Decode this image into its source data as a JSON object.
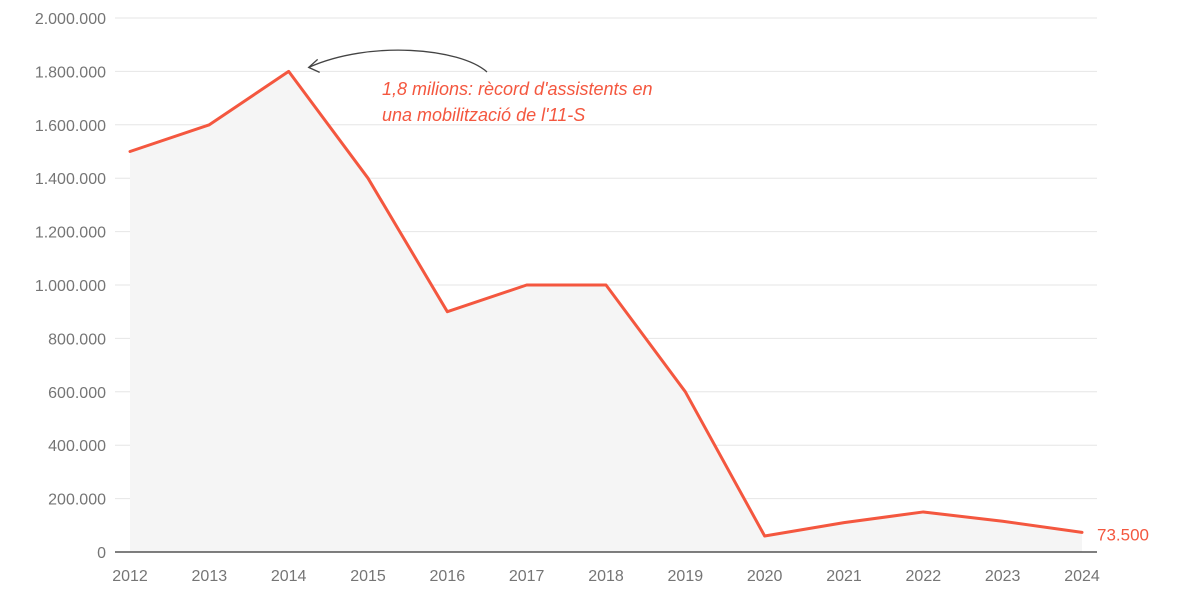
{
  "chart_data": {
    "type": "area",
    "title": "",
    "xlabel": "",
    "ylabel": "",
    "x": [
      "2012",
      "2013",
      "2014",
      "2015",
      "2016",
      "2017",
      "2018",
      "2019",
      "2020",
      "2021",
      "2022",
      "2023",
      "2024"
    ],
    "series": [
      {
        "values": [
          1500000,
          1600000,
          1800000,
          1400000,
          900000,
          1000000,
          1000000,
          600000,
          60000,
          110000,
          150000,
          115000,
          73500
        ]
      }
    ],
    "ylim": [
      0,
      2000000
    ],
    "yticks": [
      0,
      200000,
      400000,
      600000,
      800000,
      1000000,
      1200000,
      1400000,
      1600000,
      1800000,
      2000000
    ],
    "ytick_labels": [
      "0",
      "200.000",
      "400.000",
      "600.000",
      "800.000",
      "1.000.000",
      "1.200.000",
      "1.400.000",
      "1.600.000",
      "1.800.000",
      "2.000.000"
    ],
    "grid": true,
    "legend": "none",
    "annotation": {
      "line1": "1,8 milions: rècord d'assistents en",
      "line2": "una mobilització de l'11-S",
      "points_to": "2014"
    },
    "end_label": "73.500",
    "colors": {
      "line": "#f4573f",
      "fill": "#f5f5f5",
      "grid": "#e6e6e6",
      "axis": "#555555",
      "tick_text": "#757575",
      "annotation_text": "#f4573f",
      "arrow": "#444444"
    }
  }
}
